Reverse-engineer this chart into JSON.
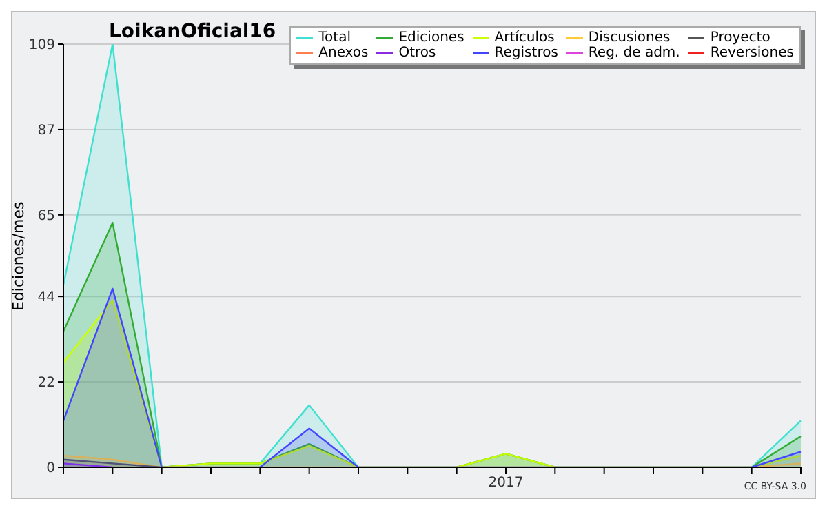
{
  "chart_data": {
    "type": "area",
    "title": "LoikanOficial16",
    "ylabel": "Ediciones/mes",
    "categories": [
      null,
      null,
      null,
      null,
      null,
      null,
      null,
      null,
      null,
      "2017",
      null,
      null,
      null,
      null,
      null,
      null
    ],
    "series": [
      {
        "name": "Total",
        "color": "#40e0d0",
        "values": [
          47,
          109,
          0,
          1,
          1,
          16,
          0,
          0,
          0,
          3.5,
          0,
          0,
          0,
          0,
          0,
          12
        ]
      },
      {
        "name": "Ediciones",
        "color": "#33aa33",
        "values": [
          35,
          63,
          0,
          1,
          1,
          6,
          0,
          0,
          0,
          3.5,
          0,
          0,
          0,
          0,
          0,
          8
        ]
      },
      {
        "name": "Artículos",
        "color": "#ccff00",
        "values": [
          27,
          43,
          0,
          1,
          1,
          5.5,
          0,
          0,
          0,
          3.5,
          0,
          0,
          0,
          0,
          0,
          3
        ]
      },
      {
        "name": "Discusiones",
        "color": "#ffcc33",
        "values": [
          3,
          2,
          0,
          0,
          0,
          0,
          0,
          0,
          0,
          0,
          0,
          0,
          0,
          0,
          0,
          1
        ]
      },
      {
        "name": "Proyecto",
        "color": "#555555",
        "values": [
          2,
          1,
          0,
          null,
          null,
          null,
          null,
          null,
          null,
          null,
          null,
          null,
          null,
          null,
          null,
          null
        ]
      },
      {
        "name": "Anexos",
        "color": "#ff7f50",
        "values": [
          null,
          null,
          null,
          null,
          null,
          null,
          null,
          null,
          null,
          null,
          null,
          null,
          null,
          null,
          null,
          null
        ]
      },
      {
        "name": "Otros",
        "color": "#8a2be2",
        "values": [
          1,
          0,
          null,
          null,
          null,
          null,
          null,
          null,
          null,
          null,
          null,
          null,
          null,
          null,
          null,
          null
        ]
      },
      {
        "name": "Registros",
        "color": "#4444ff",
        "values": [
          12,
          46,
          0,
          0,
          0,
          10,
          0,
          0,
          0,
          0,
          0,
          0,
          0,
          0,
          0,
          4
        ]
      },
      {
        "name": "Reg. de adm.",
        "color": "#dd44dd",
        "values": [
          null,
          null,
          null,
          null,
          null,
          null,
          null,
          null,
          null,
          null,
          null,
          null,
          null,
          null,
          null,
          null
        ]
      },
      {
        "name": "Reversiones",
        "color": "#ee2222",
        "values": [
          null,
          null,
          null,
          null,
          null,
          null,
          null,
          null,
          null,
          null,
          null,
          null,
          null,
          null,
          null,
          null
        ]
      }
    ],
    "ylim": [
      0,
      109
    ],
    "yticks": [
      0,
      22,
      44,
      65,
      87,
      109
    ],
    "grid": "y",
    "legend": "top right",
    "annotations": [
      "CC BY-SA 3.0"
    ]
  }
}
